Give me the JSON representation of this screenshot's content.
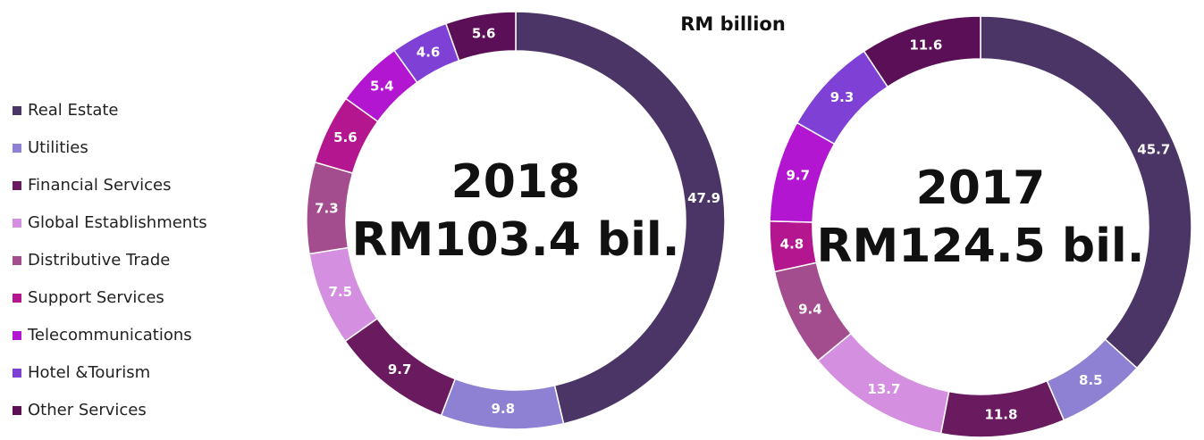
{
  "chart_data": [
    {
      "type": "pie",
      "title": "RM billion",
      "categories": [
        "Real Estate",
        "Utilities",
        "Financial Services",
        "Global Establishments",
        "Distributive Trade",
        "Support Services",
        "Telecommunications",
        "Hotel &Tourism",
        "Other Services"
      ],
      "colors": [
        "#4b3566",
        "#8e80d2",
        "#6a1a5e",
        "#d58fe0",
        "#a34d8f",
        "#b3168e",
        "#b216d0",
        "#7f40d6",
        "#5b0f56"
      ],
      "values": [
        47.9,
        9.8,
        9.7,
        7.5,
        7.3,
        5.6,
        5.4,
        4.6,
        5.6
      ],
      "center_text": [
        "2018",
        "RM103.4 bil."
      ]
    },
    {
      "type": "pie",
      "values": [
        45.7,
        8.5,
        11.8,
        13.7,
        9.4,
        4.8,
        9.7,
        9.3,
        11.6
      ],
      "center_text": [
        "2017",
        "RM124.5 bil."
      ]
    }
  ]
}
